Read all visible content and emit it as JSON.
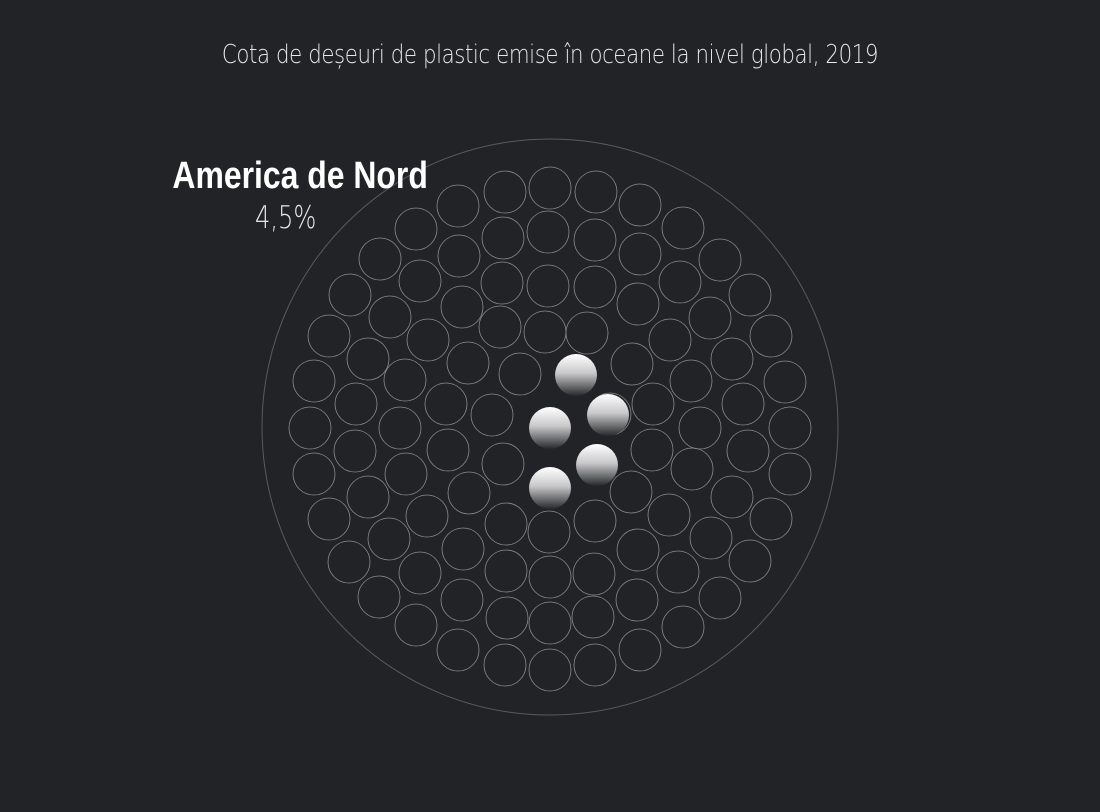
{
  "chart_data": {
    "type": "pictogram",
    "title": "Cota de deșeuri de plastic emise în oceane la nivel global, 2019",
    "total_units": 100,
    "highlight": {
      "region": "America de Nord",
      "value_label": "4,5%",
      "value": 4.5
    }
  },
  "colors": {
    "background": "#222326",
    "outline": "#8a8b8e",
    "highlight_top": "#ffffff",
    "highlight_bottom": "#2a2b2e"
  }
}
